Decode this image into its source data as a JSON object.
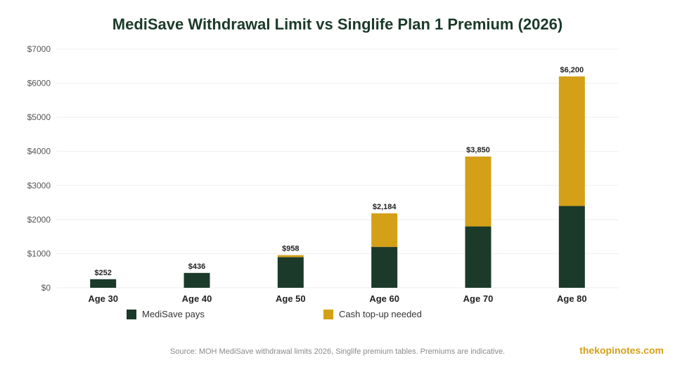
{
  "chart_data": {
    "type": "bar",
    "stacked": true,
    "title": "MediSave Withdrawal Limit vs Singlife Plan 1 Premium (2026)",
    "categories": [
      "Age 30",
      "Age 40",
      "Age 50",
      "Age 60",
      "Age 70",
      "Age 80"
    ],
    "series": [
      {
        "name": "MediSave pays",
        "color": "#1b3a2a",
        "values": [
          252,
          436,
          900,
          1200,
          1800,
          2400
        ]
      },
      {
        "name": "Cash top-up needed",
        "color": "#d4a017",
        "values": [
          0,
          0,
          58,
          984,
          2050,
          3800
        ]
      }
    ],
    "totals": [
      "$252",
      "$436",
      "$958",
      "$2,184",
      "$3,850",
      "$6,200"
    ],
    "y_ticks": [
      0,
      1000,
      2000,
      3000,
      4000,
      5000,
      6000,
      7000
    ],
    "y_tick_labels": [
      "$0",
      "$1000",
      "$2000",
      "$3000",
      "$4000",
      "$5000",
      "$6000",
      "$7000"
    ],
    "ylim": [
      0,
      7000
    ],
    "grid": true,
    "legend_position": "bottom"
  },
  "footer": {
    "source": "Source: MOH MediSave withdrawal limits 2026, Singlife premium tables. Premiums are indicative.",
    "brand": "thekopinotes.com"
  }
}
